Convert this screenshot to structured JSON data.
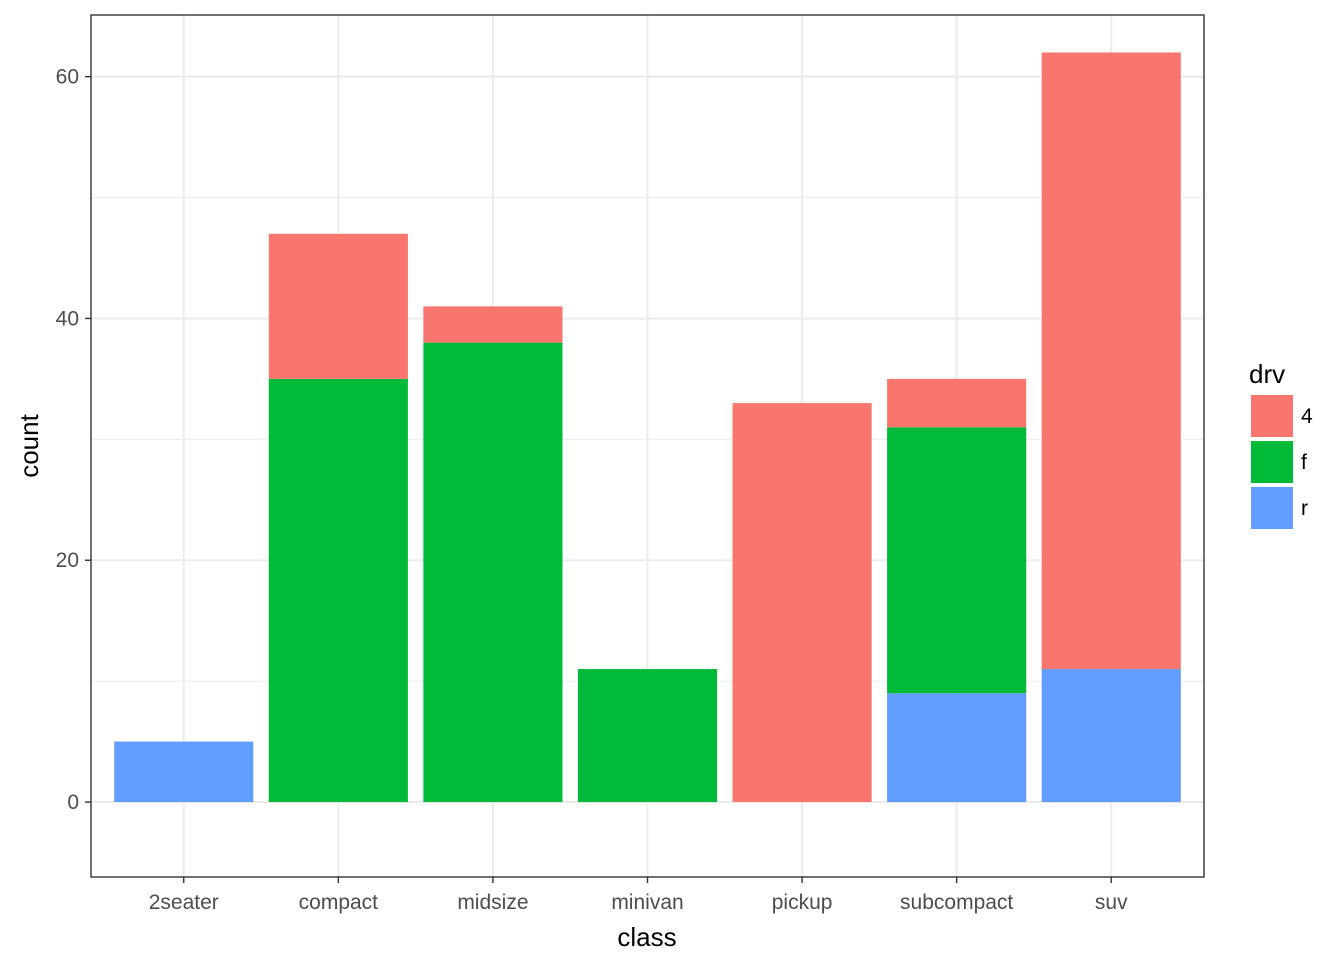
{
  "chart_data": {
    "type": "bar",
    "stacked": true,
    "categories": [
      "2seater",
      "compact",
      "midsize",
      "minivan",
      "pickup",
      "subcompact",
      "suv"
    ],
    "series": [
      {
        "name": "4",
        "color": "#F8766D",
        "values": [
          0,
          12,
          3,
          0,
          33,
          4,
          51
        ]
      },
      {
        "name": "f",
        "color": "#00BA38",
        "values": [
          0,
          35,
          38,
          11,
          0,
          22,
          0
        ]
      },
      {
        "name": "r",
        "color": "#619CFF",
        "values": [
          5,
          0,
          0,
          0,
          0,
          9,
          11
        ]
      }
    ],
    "stack_order_bottom_to_top": [
      "r",
      "f",
      "4"
    ],
    "xlabel": "class",
    "ylabel": "count",
    "ylim": [
      -6.2,
      65.1
    ],
    "yticks": [
      0,
      20,
      40,
      60
    ],
    "grid": true,
    "legend": {
      "title": "drv",
      "placement": "right",
      "entries": [
        "4",
        "f",
        "r"
      ]
    }
  }
}
